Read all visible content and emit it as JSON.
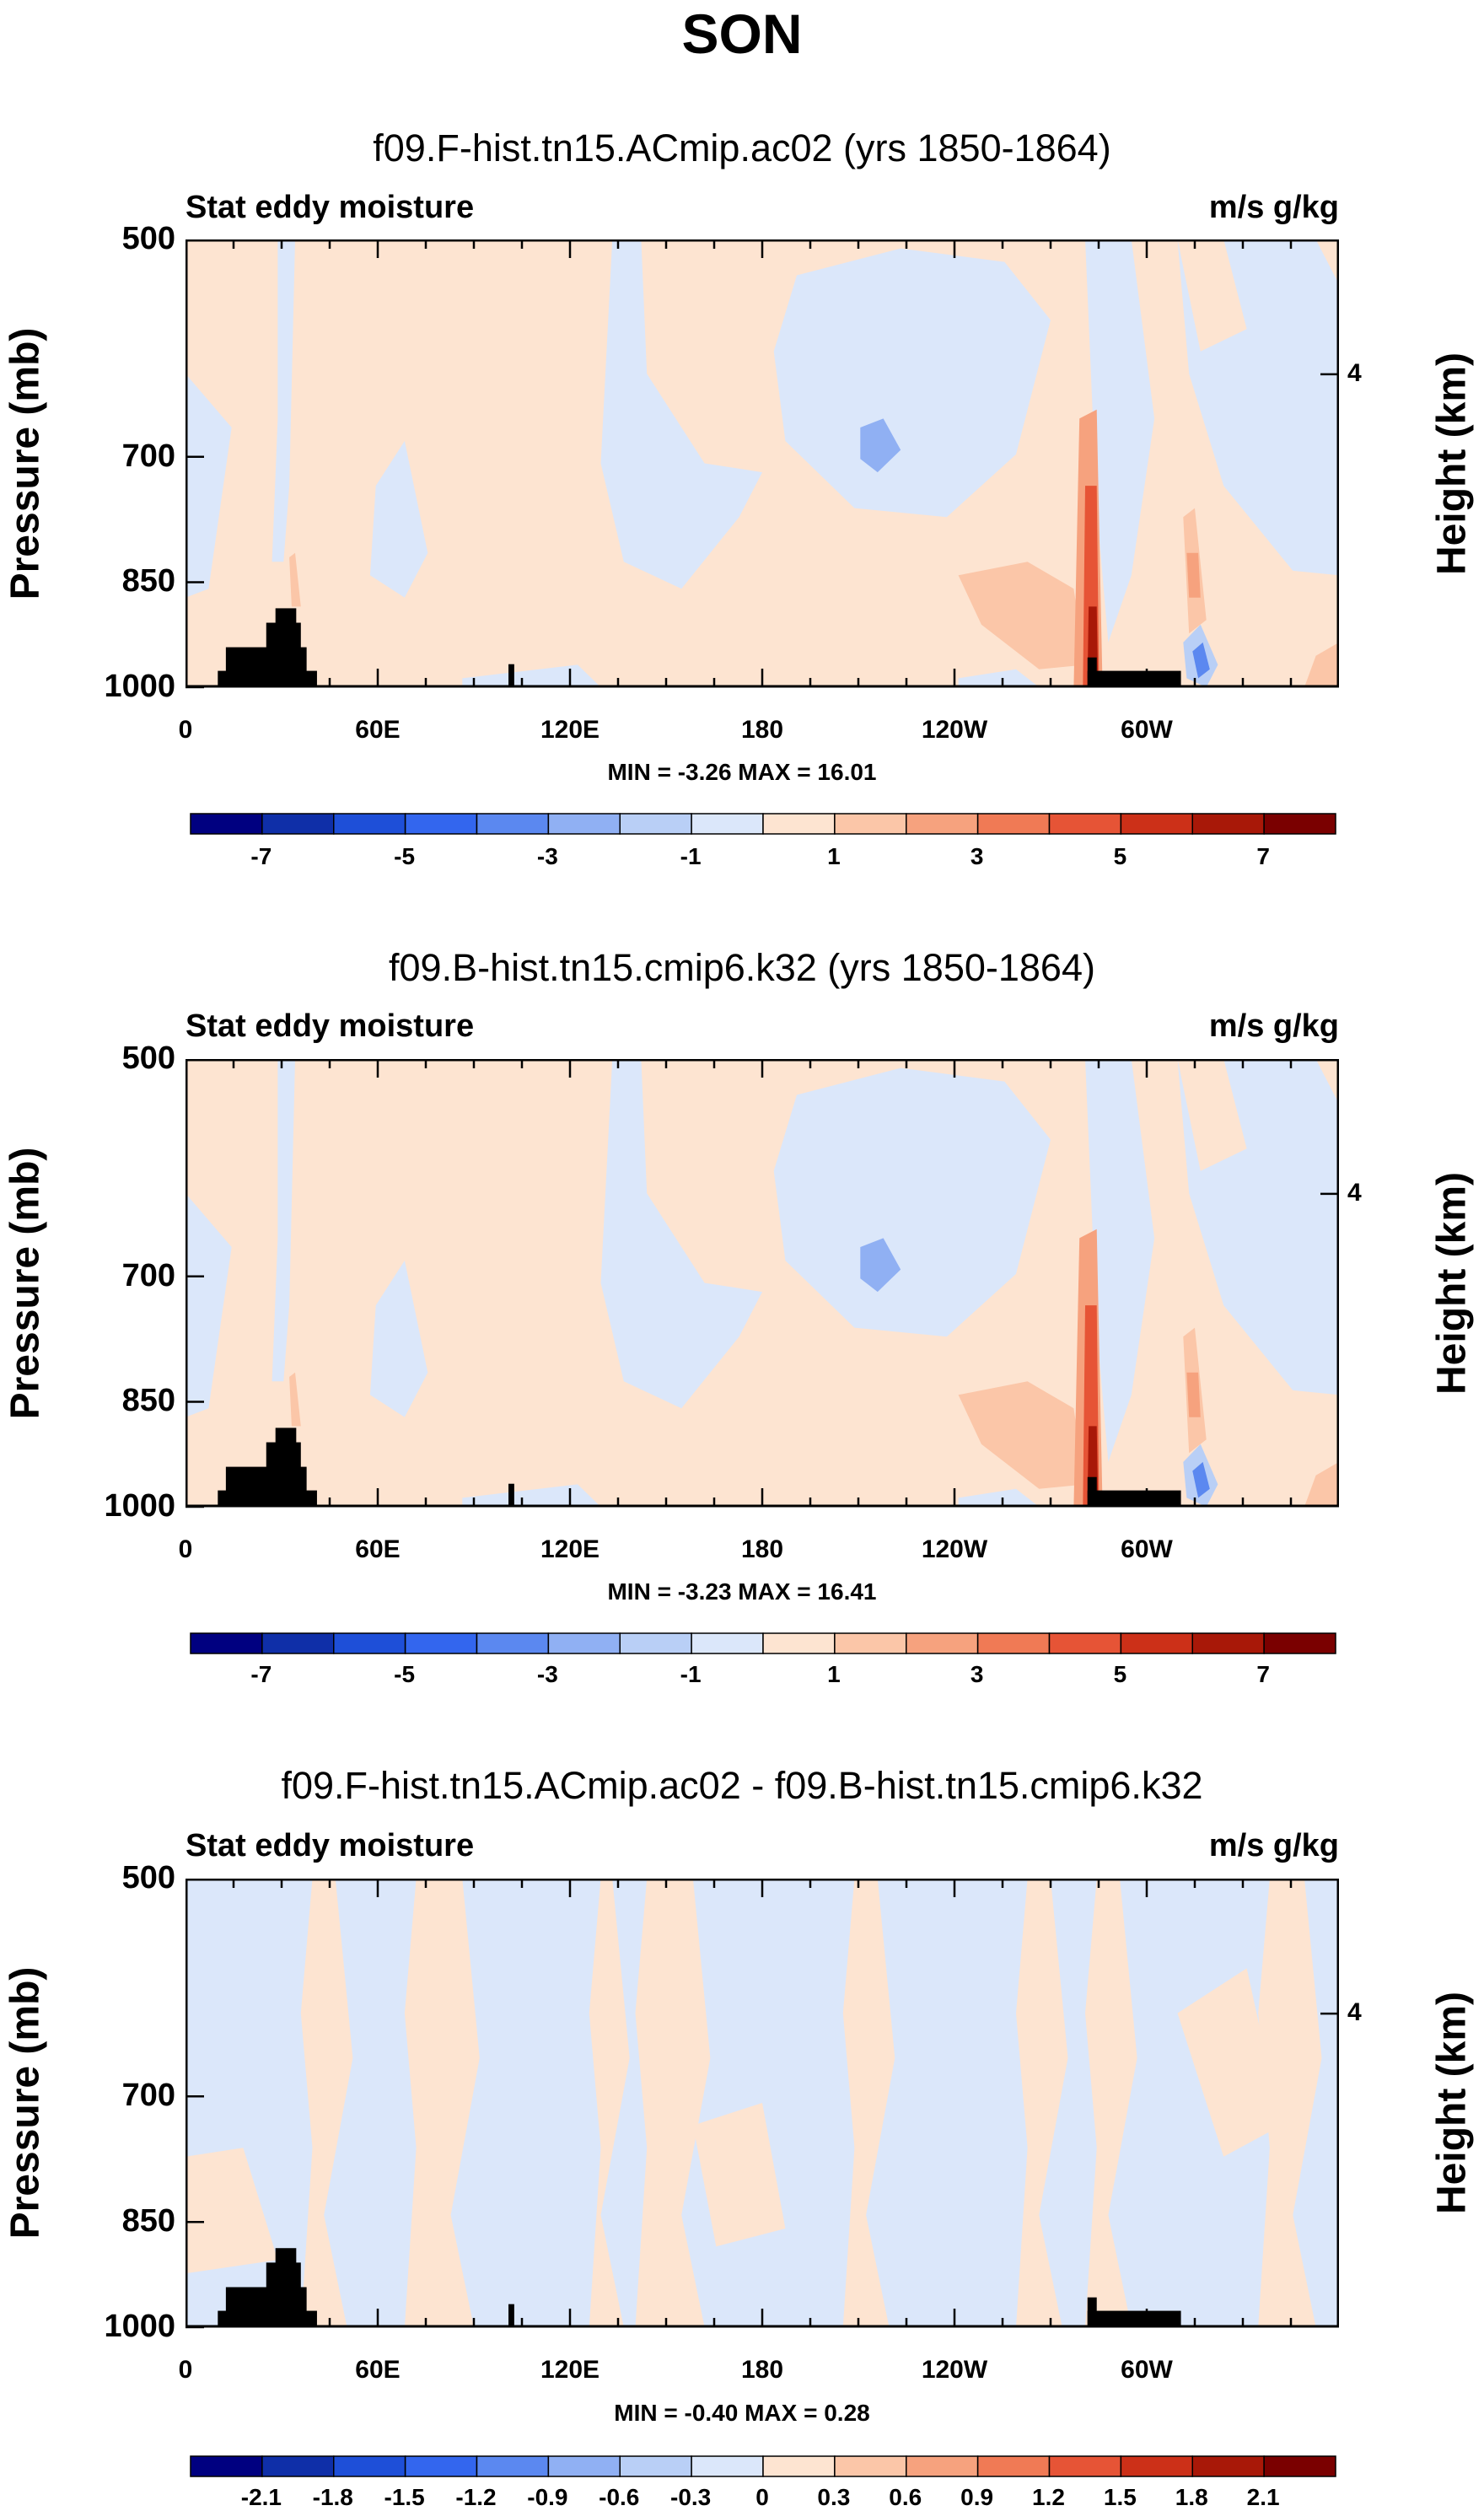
{
  "figure_title": "SON",
  "chart_data": [
    {
      "type": "heatmap",
      "title": "f09.F-hist.tn15.ACmip.ac02 (yrs 1850-1864)",
      "left_label": "Stat eddy moisture",
      "right_label": "m/s g/kg",
      "ylabel": "Pressure (mb)",
      "ylabel_right": "Height (km)",
      "y_ticks": [
        "500",
        "700",
        "850",
        "1000"
      ],
      "y_right_ticks": [
        "4"
      ],
      "x_ticks": [
        "0",
        "60E",
        "120E",
        "180",
        "120W",
        "60W"
      ],
      "stats": "MIN = -3.26 MAX = 16.01",
      "colorbar_labels": [
        "-7",
        "-5",
        "-3",
        "-1",
        "1",
        "3",
        "5",
        "7"
      ],
      "colorbar_colors": [
        "#000080",
        "#0f2fa8",
        "#1e4fd8",
        "#3366ee",
        "#5b88f0",
        "#90b0f3",
        "#b9cff6",
        "#dbe7fa",
        "#fde4d1",
        "#fbc6a8",
        "#f6a27e",
        "#f07a55",
        "#e65436",
        "#cc3018",
        "#a81808",
        "#7a0000"
      ],
      "min": -3.26,
      "max": 16.01
    },
    {
      "type": "heatmap",
      "title": "f09.B-hist.tn15.cmip6.k32 (yrs 1850-1864)",
      "left_label": "Stat eddy moisture",
      "right_label": "m/s g/kg",
      "ylabel": "Pressure (mb)",
      "ylabel_right": "Height (km)",
      "y_ticks": [
        "500",
        "700",
        "850",
        "1000"
      ],
      "y_right_ticks": [
        "4"
      ],
      "x_ticks": [
        "0",
        "60E",
        "120E",
        "180",
        "120W",
        "60W"
      ],
      "stats": "MIN = -3.23 MAX = 16.41",
      "colorbar_labels": [
        "-7",
        "-5",
        "-3",
        "-1",
        "1",
        "3",
        "5",
        "7"
      ],
      "colorbar_colors": [
        "#000080",
        "#0f2fa8",
        "#1e4fd8",
        "#3366ee",
        "#5b88f0",
        "#90b0f3",
        "#b9cff6",
        "#dbe7fa",
        "#fde4d1",
        "#fbc6a8",
        "#f6a27e",
        "#f07a55",
        "#e65436",
        "#cc3018",
        "#a81808",
        "#7a0000"
      ],
      "min": -3.23,
      "max": 16.41
    },
    {
      "type": "heatmap",
      "title": "f09.F-hist.tn15.ACmip.ac02 - f09.B-hist.tn15.cmip6.k32",
      "left_label": "Stat eddy moisture",
      "right_label": "m/s g/kg",
      "ylabel": "Pressure (mb)",
      "ylabel_right": "Height (km)",
      "y_ticks": [
        "500",
        "700",
        "850",
        "1000"
      ],
      "y_right_ticks": [
        "4"
      ],
      "x_ticks": [
        "0",
        "60E",
        "120E",
        "180",
        "120W",
        "60W"
      ],
      "stats": "MIN = -0.40 MAX = 0.28",
      "colorbar_labels": [
        "-2.1",
        "-1.8",
        "-1.5",
        "-1.2",
        "-0.9",
        "-0.6",
        "-0.3",
        "0",
        "0.3",
        "0.6",
        "0.9",
        "1.2",
        "1.5",
        "1.8",
        "2.1"
      ],
      "colorbar_colors": [
        "#000080",
        "#0f2fa8",
        "#1e4fd8",
        "#3366ee",
        "#5b88f0",
        "#90b0f3",
        "#b9cff6",
        "#dbe7fa",
        "#fde4d1",
        "#fbc6a8",
        "#f6a27e",
        "#f07a55",
        "#e65436",
        "#cc3018",
        "#a81808",
        "#7a0000"
      ],
      "min": -0.4,
      "max": 0.28
    }
  ]
}
